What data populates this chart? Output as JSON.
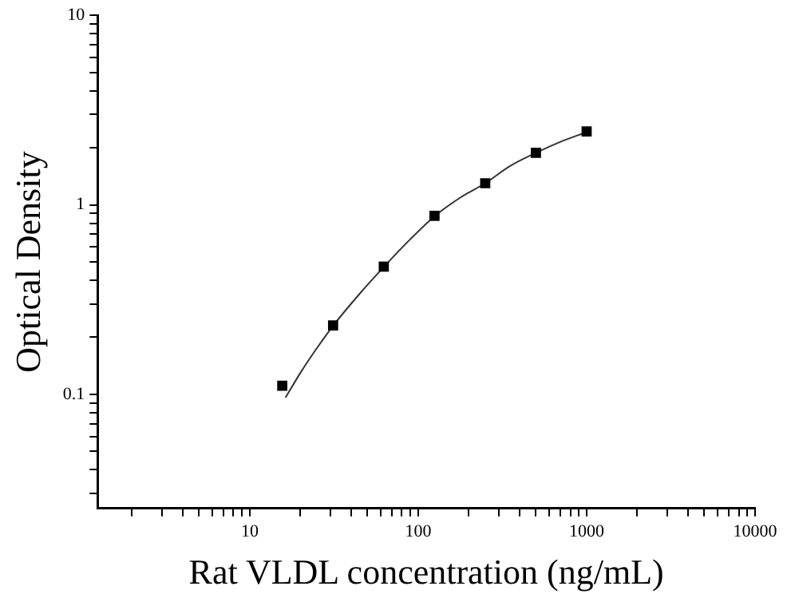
{
  "chart_data": {
    "type": "scatter",
    "xlabel": "Rat VLDL concentration (ng/mL)",
    "ylabel": "Optical Density",
    "log": "xy",
    "grid": false,
    "legend": false,
    "xlim": [
      1.25,
      10000
    ],
    "xticks": [
      {
        "value": 2,
        "label": null
      },
      {
        "value": 3,
        "label": null
      },
      {
        "value": 4,
        "label": null
      },
      {
        "value": 5,
        "label": null
      },
      {
        "value": 6,
        "label": null
      },
      {
        "value": 7,
        "label": null
      },
      {
        "value": 8,
        "label": null
      },
      {
        "value": 9,
        "label": null
      },
      10,
      {
        "value": 20,
        "label": null
      },
      {
        "value": 30,
        "label": null
      },
      {
        "value": 40,
        "label": null
      },
      {
        "value": 50,
        "label": null
      },
      {
        "value": 60,
        "label": null
      },
      {
        "value": 70,
        "label": null
      },
      {
        "value": 80,
        "label": null
      },
      {
        "value": 90,
        "label": null
      },
      100,
      {
        "value": 200,
        "label": null
      },
      {
        "value": 300,
        "label": null
      },
      {
        "value": 400,
        "label": null
      },
      {
        "value": 500,
        "label": null
      },
      {
        "value": 600,
        "label": null
      },
      {
        "value": 700,
        "label": null
      },
      {
        "value": 800,
        "label": null
      },
      {
        "value": 900,
        "label": null
      },
      1000,
      {
        "value": 2000,
        "label": null
      },
      {
        "value": 3000,
        "label": null
      },
      {
        "value": 4000,
        "label": null
      },
      {
        "value": 5000,
        "label": null
      },
      {
        "value": 6000,
        "label": null
      },
      {
        "value": 7000,
        "label": null
      },
      {
        "value": 8000,
        "label": null
      },
      {
        "value": 9000,
        "label": null
      },
      10000
    ],
    "ylim": [
      0.025,
      10
    ],
    "yticks": [
      {
        "value": 0.03,
        "label": null
      },
      {
        "value": 0.04,
        "label": null
      },
      {
        "value": 0.05,
        "label": null
      },
      {
        "value": 0.06,
        "label": null
      },
      {
        "value": 0.07,
        "label": null
      },
      {
        "value": 0.08,
        "label": null
      },
      {
        "value": 0.09,
        "label": null
      },
      0.1,
      {
        "value": 0.2,
        "label": null
      },
      {
        "value": 0.3,
        "label": null
      },
      {
        "value": 0.4,
        "label": null
      },
      {
        "value": 0.5,
        "label": null
      },
      {
        "value": 0.6,
        "label": null
      },
      {
        "value": 0.7,
        "label": null
      },
      {
        "value": 0.8,
        "label": null
      },
      {
        "value": 0.9,
        "label": null
      },
      1,
      {
        "value": 2,
        "label": null
      },
      {
        "value": 3,
        "label": null
      },
      {
        "value": 4,
        "label": null
      },
      {
        "value": 5,
        "label": null
      },
      {
        "value": 6,
        "label": null
      },
      {
        "value": 7,
        "label": null
      },
      {
        "value": 8,
        "label": null
      },
      {
        "value": 9,
        "label": null
      },
      10
    ],
    "series": [
      {
        "marker": "square",
        "color": "#000000",
        "x": [
          15.6,
          31.25,
          62.5,
          125,
          250,
          500,
          1000
        ],
        "values": [
          0.111,
          0.231,
          0.472,
          0.875,
          1.3,
          1.88,
          2.44
        ]
      },
      {
        "type": "line",
        "marker": "none",
        "color": "#333333",
        "x": [
          16.3,
          20,
          25,
          31.25,
          45,
          62.5,
          90,
          125,
          180,
          250,
          350,
          500,
          700,
          1000
        ],
        "values": [
          0.096,
          0.13,
          0.175,
          0.23,
          0.34,
          0.47,
          0.66,
          0.87,
          1.1,
          1.3,
          1.6,
          1.88,
          2.15,
          2.42
        ]
      }
    ]
  }
}
